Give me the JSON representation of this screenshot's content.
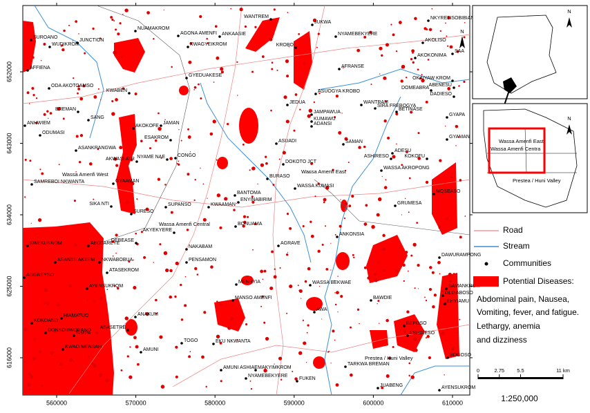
{
  "map": {
    "x_ticks": [
      560000,
      570000,
      580000,
      590000,
      600000,
      610000
    ],
    "y_ticks": [
      616000,
      625000,
      634000,
      643000,
      652000
    ],
    "communities": [
      "WANTREM",
      "JUKWA",
      "NKYREFISOBIBIANIHA",
      "SUROANO",
      "WUDIKROM",
      "NUAMAKROM",
      "AGONA AMENFI",
      "ANKAASIE",
      "KWAGYEIKROM",
      "NYAMEBEKYERE",
      "AKOLISO",
      "SAA",
      "JUNCTION",
      "KROBO",
      "AKOKONIMA",
      "AFFIENA",
      "AFRANSE",
      "GYEDUAKESE",
      "OKAIYAW KROM",
      "ODA AKOTOAMSO",
      "ABENESU",
      "DOMEABRA",
      "KWABEN",
      "ASUOGYA KROBO",
      "DADIESO",
      "WANTRAM",
      "JEDUA",
      "SIRA FREBOGYA",
      "BREMAN",
      "JAMPAWUA",
      "BETINASE",
      "ANHWIEM",
      "SANG",
      "JAMAN",
      "KUMAWU",
      "GYAPA",
      "ADANSI",
      "AKOKOFE",
      "ODUMASI",
      "ESAKROM",
      "GYAMAN",
      "ASUADI",
      "SAMAN",
      "ASANKRANGWA",
      "ADESU",
      "ASHIRESO",
      "KOKOFU",
      "AKWASI ATR",
      "NYAME NAE",
      "CONGO",
      "DOKOTO JCT",
      "WASSA AKROPONG",
      "SAMREBOI NKWANTA",
      "GYAAMAN",
      "BURASO",
      "WASSA KUMASI",
      "SIKA NTI",
      "BANTOMA",
      "ENYINABIRIM",
      "MOSEASO",
      "SUPANSO",
      "KWAAMAN",
      "GRUMESA",
      "SURESO",
      "AKYEKYERE",
      "BONUAMA",
      "DEBEASE",
      "KWEKUKROM",
      "ABOTAREYE",
      "ANKONSIA",
      "NAKABAM",
      "AGRAVE",
      "DAWURAMPONG",
      "ASANTE AKYEM",
      "NKWABOBUA",
      "PENSAMON",
      "ATASEKROM",
      "AGGREYSO",
      "AYENSUKROM",
      "MENHYIA",
      "WASSA BEKWAE",
      "SAMANKROM",
      "OLD ABOSO",
      "MANSO AMENFI",
      "BAWDIE",
      "EHYIAMU",
      "HIAMATUO",
      "ANAKUM",
      "AWA",
      "KOKOASO",
      "DONKORWORANO",
      "ASASETRE",
      "SIMPA",
      "BEPOSO",
      "ESHIRESO",
      "TOGO",
      "EKU NKWANTA",
      "KWAO MENSAH",
      "AMUNI",
      "TARKWA BREMAN",
      "BOGOSO",
      "AMUNI ASHIAE",
      "MAKYIMKROM",
      "NYAMEBEKYERE",
      "FUKEN",
      "JUABENG",
      "AYENSUKROM"
    ],
    "districts": [
      "Wassa Amenfi West",
      "Wassa Amenfi East",
      "Wassa Amenfi Central",
      "Prestea / Huni Valley"
    ]
  },
  "inset": {
    "north": "N",
    "districts": [
      "Wassa Amenfi East",
      "Wassa Amenfi Centra",
      "Prestea / Huni Valley"
    ]
  },
  "legend": {
    "items": [
      "Road",
      "Stream",
      "Communities",
      "Potential Diseases:"
    ],
    "description": [
      "Abdominal pain, Nausea,",
      "Vomiting, fever, and fatigue.",
      "Lethargy, anemia",
      "and dizziness"
    ]
  },
  "scale_bar": {
    "ticks": [
      0,
      2.75,
      5.5,
      {
        "value": 11,
        "label": "11 km"
      }
    ],
    "ratio": "1:250,000"
  }
}
